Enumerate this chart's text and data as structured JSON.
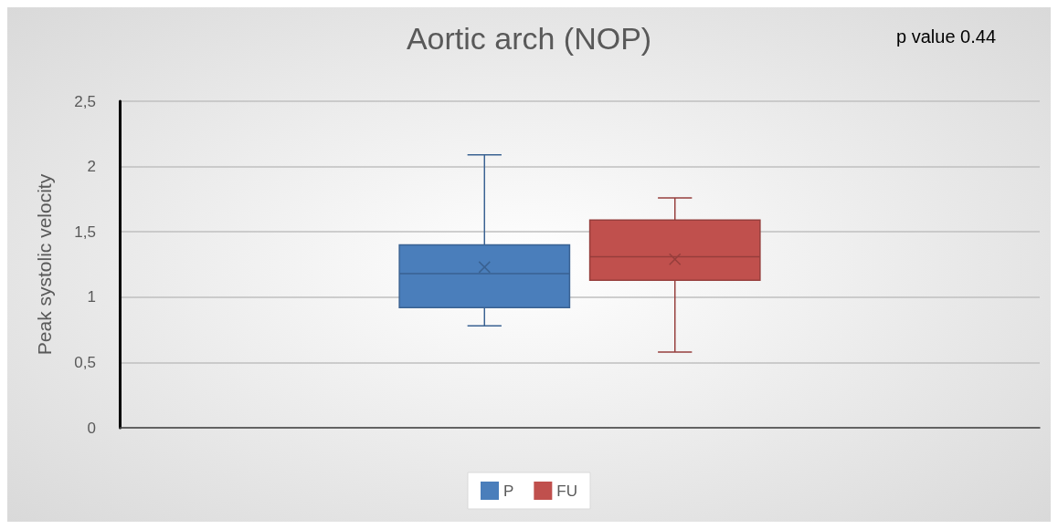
{
  "chart_data": {
    "type": "box",
    "title": "Aortic arch (NOP)",
    "ylabel": "Peak systolic velocity",
    "categories": [
      null
    ],
    "series": [
      {
        "name": "P",
        "color": "#4a7ebb",
        "boxes": [
          {
            "low": 0.78,
            "q1": 0.92,
            "median": 1.18,
            "q3": 1.4,
            "high": 2.09,
            "mean": 1.23
          }
        ]
      },
      {
        "name": "FU",
        "color": "#c0504d",
        "boxes": [
          {
            "low": 0.58,
            "q1": 1.13,
            "median": 1.31,
            "q3": 1.59,
            "high": 1.76,
            "mean": 1.29
          }
        ]
      }
    ],
    "ylim": [
      0,
      2.5
    ],
    "yticks": [
      0,
      {
        "value": 0.5,
        "label": "0,5"
      },
      1,
      {
        "value": 1.5,
        "label": "1,5"
      },
      2,
      {
        "value": 2.5,
        "label": "2,5"
      }
    ],
    "grid": "y",
    "legend": "bottom",
    "marker": "cross",
    "annotations": [
      "p value 0.44"
    ]
  }
}
